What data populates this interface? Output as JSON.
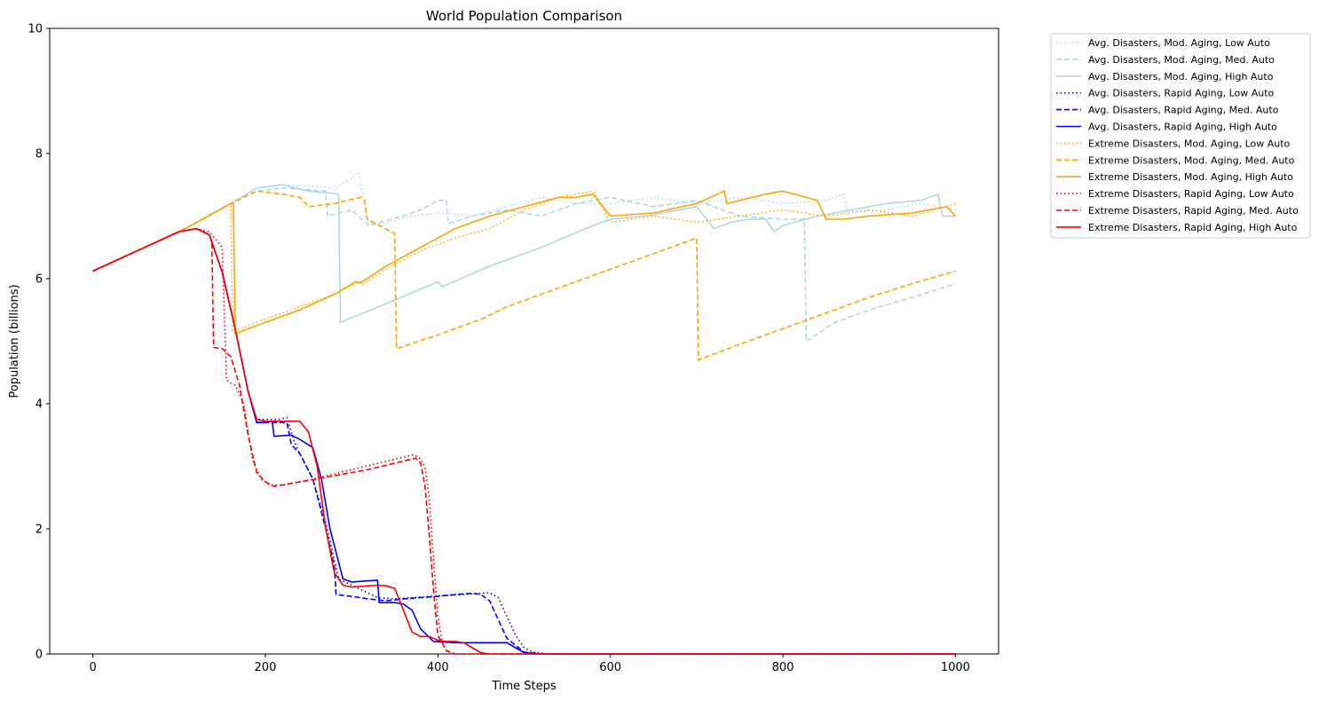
{
  "chart_data": {
    "type": "line",
    "title": "World Population Comparison",
    "xlabel": "Time Steps",
    "ylabel": "Population (billions)",
    "xlim": [
      -50,
      1050
    ],
    "ylim": [
      0,
      10
    ],
    "xticks": [
      0,
      200,
      400,
      600,
      800,
      1000
    ],
    "yticks": [
      0,
      2,
      4,
      6,
      8,
      10
    ],
    "grid": false,
    "legend_position": "outside-top-right",
    "series": [
      {
        "name": "Avg. Disasters, Mod. Aging, Low Auto",
        "color": "#add8e6",
        "dash": "dotted",
        "x": [
          0,
          60,
          110,
          160,
          190,
          220,
          250,
          280,
          300,
          308,
          320,
          345,
          370,
          400,
          440,
          480,
          520,
          560,
          600,
          650,
          700,
          750,
          800,
          850,
          870,
          875,
          920,
          960,
          1000
        ],
        "y": [
          6.12,
          6.5,
          6.82,
          7.2,
          7.45,
          7.5,
          7.48,
          7.45,
          7.6,
          7.7,
          6.85,
          6.9,
          7.0,
          7.05,
          7.0,
          7.15,
          7.3,
          7.2,
          7.2,
          7.3,
          7.2,
          7.3,
          7.2,
          7.25,
          7.35,
          7.05,
          7.1,
          7.2,
          7.1
        ]
      },
      {
        "name": "Avg. Disasters, Mod. Aging, Med. Auto",
        "color": "#add8e6",
        "dash": "dashed",
        "x": [
          0,
          60,
          110,
          160,
          190,
          220,
          250,
          270,
          272,
          300,
          320,
          360,
          380,
          400,
          410,
          412,
          440,
          480,
          520,
          560,
          600,
          650,
          700,
          750,
          800,
          825,
          827,
          860,
          900,
          950,
          1000
        ],
        "y": [
          6.12,
          6.5,
          6.82,
          7.2,
          7.4,
          7.45,
          7.42,
          7.4,
          7.0,
          7.1,
          6.85,
          7.0,
          7.1,
          7.25,
          7.25,
          6.88,
          7.0,
          7.1,
          7.0,
          7.2,
          7.3,
          7.15,
          7.25,
          7.0,
          6.95,
          6.95,
          5.0,
          5.3,
          5.5,
          5.7,
          5.92
        ]
      },
      {
        "name": "Avg. Disasters, Mod. Aging, High Auto",
        "color": "#add8e6",
        "dash": "solid",
        "x": [
          0,
          60,
          110,
          160,
          190,
          220,
          250,
          285,
          287,
          340,
          400,
          405,
          460,
          520,
          580,
          600,
          640,
          680,
          700,
          720,
          740,
          760,
          780,
          790,
          800,
          840,
          880,
          920,
          960,
          980,
          985,
          1000
        ],
        "y": [
          6.12,
          6.5,
          6.82,
          7.2,
          7.45,
          7.5,
          7.4,
          7.35,
          5.3,
          5.6,
          5.95,
          5.87,
          6.2,
          6.5,
          6.85,
          6.95,
          7.0,
          7.1,
          7.15,
          6.8,
          6.9,
          6.95,
          6.95,
          6.75,
          6.85,
          7.0,
          7.1,
          7.2,
          7.25,
          7.35,
          7.0,
          7.0
        ]
      },
      {
        "name": "Avg. Disasters, Rapid Aging, Low Auto",
        "color": "#0000ff",
        "dash": "dotted",
        "x": [
          0,
          60,
          100,
          120,
          135,
          150,
          165,
          180,
          190,
          205,
          215,
          225,
          232,
          240,
          255,
          270,
          285,
          300,
          330,
          350,
          370,
          400,
          430,
          460,
          470,
          480,
          490,
          500,
          510,
          530,
          1000
        ],
        "y": [
          6.12,
          6.5,
          6.75,
          6.8,
          6.7,
          6.1,
          5.2,
          4.2,
          3.75,
          3.75,
          3.75,
          3.78,
          3.45,
          3.2,
          2.8,
          2.1,
          1.2,
          1.1,
          0.9,
          0.88,
          0.9,
          0.93,
          0.95,
          0.98,
          0.9,
          0.6,
          0.3,
          0.1,
          0.03,
          0.0,
          0.0
        ]
      },
      {
        "name": "Avg. Disasters, Rapid Aging, Med. Auto",
        "color": "#0000ff",
        "dash": "dashed",
        "x": [
          0,
          60,
          100,
          120,
          135,
          150,
          165,
          180,
          190,
          205,
          215,
          225,
          230,
          240,
          255,
          270,
          280,
          282,
          300,
          320,
          340,
          360,
          380,
          400,
          420,
          440,
          450,
          460,
          470,
          480,
          500,
          520,
          1000
        ],
        "y": [
          6.12,
          6.5,
          6.75,
          6.8,
          6.7,
          6.1,
          5.2,
          4.2,
          3.7,
          3.7,
          3.7,
          3.7,
          3.35,
          3.2,
          2.8,
          2.0,
          1.4,
          0.95,
          0.92,
          0.88,
          0.85,
          0.88,
          0.9,
          0.92,
          0.95,
          0.97,
          0.95,
          0.85,
          0.55,
          0.25,
          0.03,
          0.0,
          0.0
        ]
      },
      {
        "name": "Avg. Disasters, Rapid Aging, High Auto",
        "color": "#0000ff",
        "dash": "solid",
        "x": [
          0,
          60,
          100,
          120,
          135,
          150,
          165,
          180,
          190,
          200,
          208,
          210,
          230,
          240,
          255,
          265,
          275,
          290,
          300,
          330,
          332,
          350,
          360,
          370,
          380,
          395,
          420,
          440,
          460,
          480,
          490,
          500,
          520,
          1000
        ],
        "y": [
          6.12,
          6.5,
          6.75,
          6.8,
          6.7,
          6.1,
          5.2,
          4.2,
          3.7,
          3.7,
          3.72,
          3.48,
          3.5,
          3.43,
          3.3,
          2.8,
          2.0,
          1.2,
          1.15,
          1.18,
          0.82,
          0.82,
          0.8,
          0.7,
          0.4,
          0.2,
          0.18,
          0.18,
          0.18,
          0.18,
          0.1,
          0.02,
          0.0,
          0.0
        ]
      },
      {
        "name": "Extreme Disasters, Mod. Aging, Low Auto",
        "color": "#ffa500",
        "dash": "dotted",
        "x": [
          0,
          60,
          110,
          160,
          162,
          190,
          220,
          250,
          280,
          300,
          310,
          312,
          340,
          380,
          420,
          460,
          500,
          540,
          580,
          600,
          650,
          700,
          750,
          800,
          850,
          900,
          950,
          1000
        ],
        "y": [
          6.12,
          6.5,
          6.82,
          7.2,
          5.15,
          5.3,
          5.45,
          5.6,
          5.75,
          5.9,
          5.95,
          5.9,
          6.15,
          6.45,
          6.65,
          6.8,
          7.1,
          7.3,
          7.4,
          6.9,
          7.0,
          6.9,
          7.0,
          7.1,
          7.0,
          7.1,
          7.0,
          7.2
        ]
      },
      {
        "name": "Extreme Disasters, Mod. Aging, Med. Auto",
        "color": "#ffa500",
        "dash": "dashed",
        "x": [
          0,
          60,
          110,
          160,
          190,
          220,
          240,
          250,
          280,
          310,
          315,
          318,
          350,
          352,
          400,
          450,
          480,
          510,
          520,
          560,
          600,
          650,
          700,
          702,
          750,
          800,
          850,
          900,
          950,
          1000
        ],
        "y": [
          6.12,
          6.5,
          6.82,
          7.2,
          7.4,
          7.35,
          7.3,
          7.15,
          7.2,
          7.3,
          7.25,
          6.95,
          6.72,
          4.88,
          5.1,
          5.35,
          5.55,
          5.7,
          5.75,
          5.95,
          6.15,
          6.4,
          6.65,
          4.7,
          4.95,
          5.2,
          5.45,
          5.7,
          5.92,
          6.12
        ]
      },
      {
        "name": "Extreme Disasters, Mod. Aging, High Auto",
        "color": "#ffa500",
        "dash": "solid",
        "x": [
          0,
          60,
          110,
          160,
          163,
          165,
          200,
          240,
          280,
          305,
          310,
          340,
          380,
          420,
          460,
          500,
          540,
          560,
          580,
          600,
          650,
          700,
          732,
          735,
          780,
          800,
          840,
          850,
          870,
          900,
          950,
          990,
          1000
        ],
        "y": [
          6.12,
          6.5,
          6.82,
          7.2,
          7.2,
          5.12,
          5.3,
          5.5,
          5.75,
          5.95,
          5.93,
          6.2,
          6.5,
          6.8,
          7.0,
          7.15,
          7.3,
          7.3,
          7.35,
          7.0,
          7.05,
          7.2,
          7.4,
          7.2,
          7.35,
          7.4,
          7.25,
          6.95,
          6.95,
          7.0,
          7.05,
          7.15,
          7.0
        ]
      },
      {
        "name": "Extreme Disasters, Rapid Aging, Low Auto",
        "color": "#ff0000",
        "dash": "dotted",
        "x": [
          0,
          60,
          100,
          120,
          135,
          150,
          155,
          160,
          165,
          175,
          185,
          195,
          205,
          220,
          250,
          280,
          310,
          340,
          370,
          378,
          385,
          390,
          395,
          400,
          405,
          410,
          420,
          1000
        ],
        "y": [
          6.12,
          6.5,
          6.75,
          6.8,
          6.75,
          6.5,
          4.38,
          4.33,
          4.3,
          4.0,
          3.1,
          2.8,
          2.7,
          2.7,
          2.78,
          2.88,
          2.98,
          3.08,
          3.18,
          3.15,
          3.0,
          2.5,
          1.5,
          0.6,
          0.2,
          0.05,
          0.0,
          0.0
        ]
      },
      {
        "name": "Extreme Disasters, Rapid Aging, Med. Auto",
        "color": "#ff0000",
        "dash": "dashed",
        "x": [
          0,
          60,
          100,
          120,
          135,
          138,
          140,
          150,
          160,
          170,
          180,
          190,
          200,
          210,
          240,
          280,
          320,
          350,
          374,
          380,
          385,
          390,
          395,
          400,
          410,
          420,
          1000
        ],
        "y": [
          6.12,
          6.5,
          6.75,
          6.8,
          6.7,
          6.6,
          4.9,
          4.88,
          4.75,
          4.3,
          3.5,
          2.9,
          2.75,
          2.68,
          2.75,
          2.85,
          2.95,
          3.05,
          3.13,
          3.05,
          2.7,
          1.9,
          1.0,
          0.3,
          0.05,
          0.0,
          0.0
        ]
      },
      {
        "name": "Extreme Disasters, Rapid Aging, High Auto",
        "color": "#ff0000",
        "dash": "solid",
        "x": [
          0,
          60,
          100,
          120,
          135,
          150,
          165,
          180,
          190,
          200,
          210,
          240,
          250,
          260,
          270,
          280,
          290,
          300,
          330,
          340,
          350,
          360,
          370,
          380,
          390,
          400,
          410,
          420,
          430,
          440,
          450,
          460,
          1000
        ],
        "y": [
          6.12,
          6.5,
          6.75,
          6.8,
          6.7,
          6.1,
          5.2,
          4.2,
          3.75,
          3.72,
          3.72,
          3.72,
          3.55,
          3.0,
          2.0,
          1.3,
          1.1,
          1.07,
          1.1,
          1.09,
          1.05,
          0.7,
          0.35,
          0.28,
          0.28,
          0.22,
          0.2,
          0.2,
          0.18,
          0.1,
          0.02,
          0.0,
          0.0
        ]
      }
    ]
  }
}
